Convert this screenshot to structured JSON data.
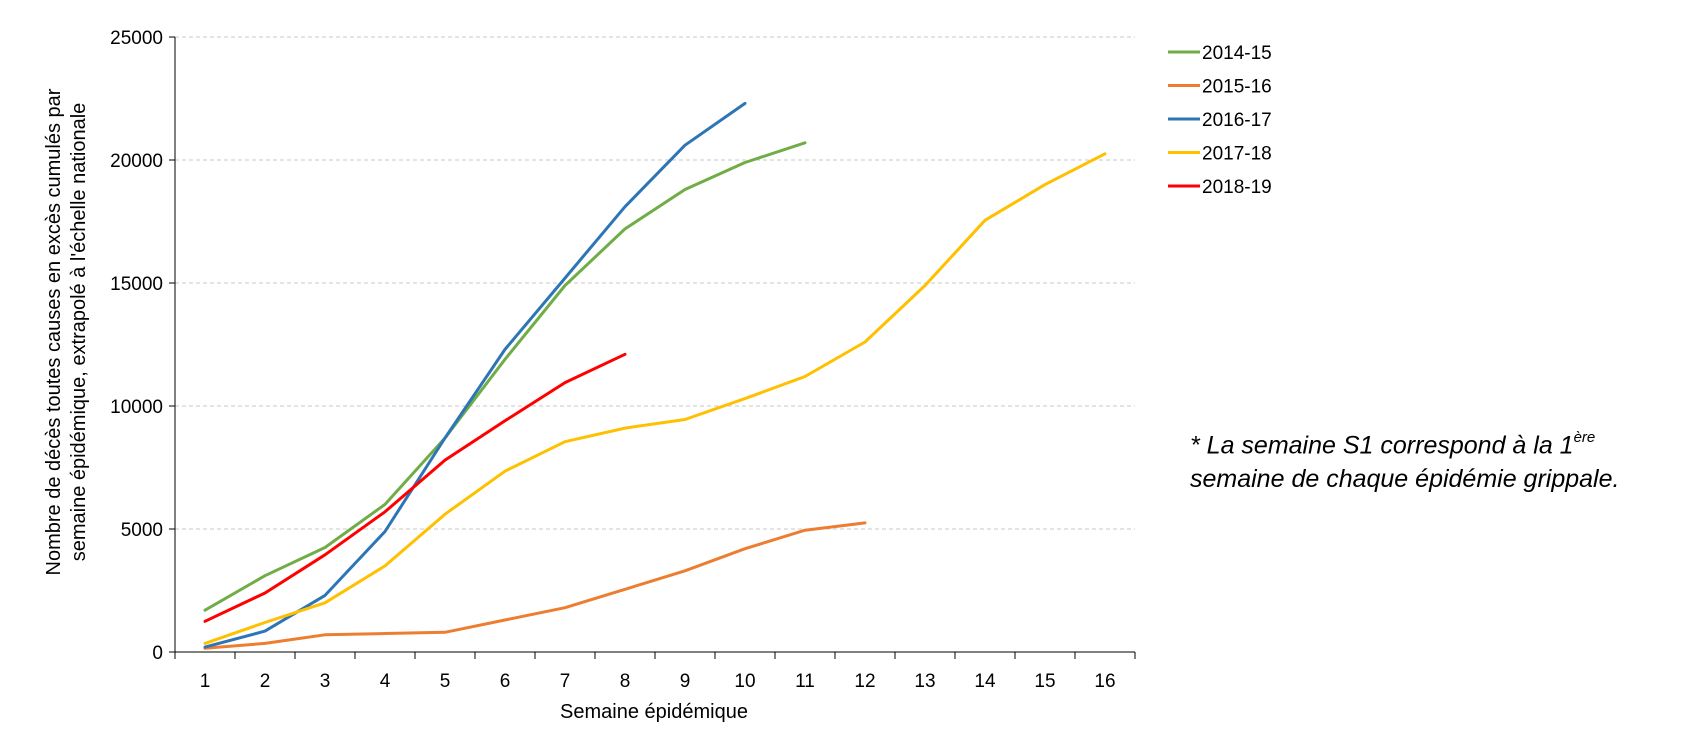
{
  "chart_data": {
    "type": "line",
    "xlabel": "Semaine épidémique",
    "ylabel_lines": [
      "Nombre de décès toutes causes en excès cumulés par",
      "semaine épidémique, extrapolé à l'échelle nationale"
    ],
    "xlim": [
      0.5,
      16.5
    ],
    "ylim": [
      0,
      25000
    ],
    "x_ticks": [
      1,
      2,
      3,
      4,
      5,
      6,
      7,
      8,
      9,
      10,
      11,
      12,
      13,
      14,
      15,
      16
    ],
    "y_ticks": [
      0,
      5000,
      10000,
      15000,
      20000,
      25000
    ],
    "grid": "horizontal-dashed",
    "legend_position": "right",
    "series": [
      {
        "name": "2014-15",
        "color": "#70ad47",
        "x": [
          1,
          2,
          3,
          4,
          5,
          6,
          7,
          8,
          9,
          10,
          11
        ],
        "values": [
          1700,
          3100,
          4250,
          6000,
          8700,
          11900,
          14900,
          17200,
          18800,
          19900,
          20700
        ]
      },
      {
        "name": "2015-16",
        "color": "#ed7d31",
        "x": [
          1,
          2,
          3,
          4,
          5,
          6,
          7,
          8,
          9,
          10,
          11,
          12
        ],
        "values": [
          150,
          350,
          700,
          750,
          800,
          1300,
          1800,
          2550,
          3300,
          4200,
          4950,
          5250
        ]
      },
      {
        "name": "2016-17",
        "color": "#2e75b6",
        "x": [
          1,
          2,
          3,
          4,
          5,
          6,
          7,
          8,
          9,
          10
        ],
        "values": [
          200,
          850,
          2300,
          4900,
          8700,
          12300,
          15200,
          18100,
          20600,
          22300
        ]
      },
      {
        "name": "2017-18",
        "color": "#ffc000",
        "x": [
          1,
          2,
          3,
          4,
          5,
          6,
          7,
          8,
          9,
          10,
          11,
          12,
          13,
          14,
          15,
          16
        ],
        "values": [
          350,
          1200,
          2000,
          3500,
          5600,
          7350,
          8550,
          9100,
          9450,
          10300,
          11200,
          12600,
          14900,
          17550,
          19000,
          20250
        ]
      },
      {
        "name": "2018-19",
        "color": "#ff0000",
        "x": [
          1,
          2,
          3,
          4,
          5,
          6,
          7,
          8
        ],
        "values": [
          1250,
          2400,
          3950,
          5700,
          7800,
          9400,
          10950,
          12100
        ]
      }
    ]
  },
  "note": {
    "line1_before_sup": "* La semaine S1 correspond à la 1",
    "line1_sup": "ère",
    "line2": "semaine de chaque épidémie grippale."
  }
}
